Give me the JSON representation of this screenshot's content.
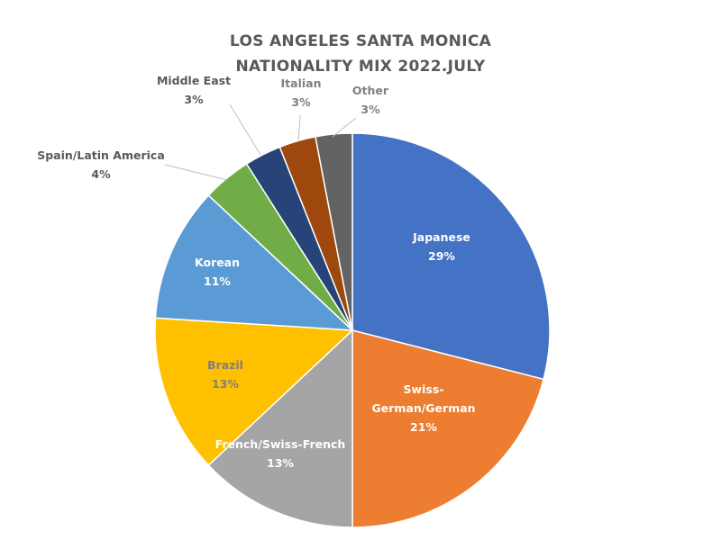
{
  "chart_data": {
    "type": "pie",
    "title_line1": "LOS ANGELES SANTA MONICA",
    "title_line2": "NATIONALITY MIX 2022.JULY",
    "slices": [
      {
        "label_lines": [
          "Japanese"
        ],
        "pct_label": "29%",
        "value": 29,
        "color": "#4472C4",
        "label_color": "#ffffff",
        "label_inside": true
      },
      {
        "label_lines": [
          "Swiss-",
          "German/German"
        ],
        "pct_label": "21%",
        "value": 21,
        "color": "#ED7D31",
        "label_color": "#ffffff",
        "label_inside": true
      },
      {
        "label_lines": [
          "French/Swiss-French"
        ],
        "pct_label": "13%",
        "value": 13,
        "color": "#A5A5A5",
        "label_color": "#ffffff",
        "label_inside": true
      },
      {
        "label_lines": [
          "Brazil"
        ],
        "pct_label": "13%",
        "value": 13,
        "color": "#FFC000",
        "label_color": "#7f7f7f",
        "label_inside": true
      },
      {
        "label_lines": [
          "Korean"
        ],
        "pct_label": "11%",
        "value": 11,
        "color": "#5B9BD5",
        "label_color": "#ffffff",
        "label_inside": true
      },
      {
        "label_lines": [
          "Spain/Latin America"
        ],
        "pct_label": "4%",
        "value": 4,
        "color": "#70AD47",
        "label_color": "#595959",
        "label_inside": false
      },
      {
        "label_lines": [
          "Middle East"
        ],
        "pct_label": "3%",
        "value": 3,
        "color": "#264478",
        "label_color": "#595959",
        "label_inside": false
      },
      {
        "label_lines": [
          "Italian"
        ],
        "pct_label": "3%",
        "value": 3,
        "color": "#9E480E",
        "label_color": "#7f7f7f",
        "label_inside": false
      },
      {
        "label_lines": [
          "Other"
        ],
        "pct_label": "3%",
        "value": 3,
        "color": "#636363",
        "label_color": "#7f7f7f",
        "label_inside": false
      }
    ]
  }
}
